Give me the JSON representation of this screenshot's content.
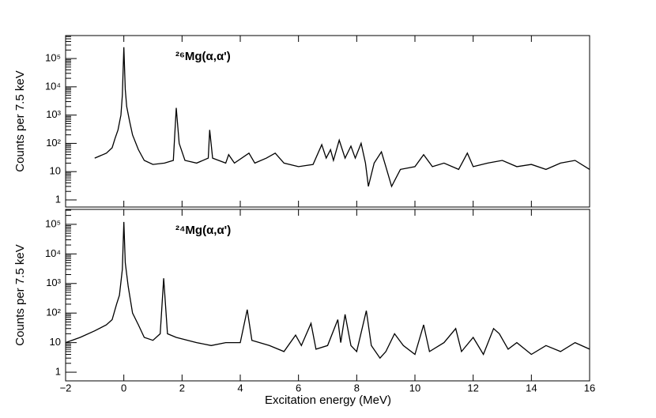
{
  "chart_data": [
    {
      "type": "line",
      "title": "²⁶Mg(α,α')",
      "y_label": "Counts per 7.5 keV",
      "yscale": "log",
      "color": "#000000",
      "xlim": [
        -2,
        16
      ],
      "ylim": [
        0.56,
        650000
      ],
      "xticks": [
        -2,
        0,
        2,
        4,
        6,
        8,
        10,
        12,
        14,
        16
      ],
      "yticks": [
        1,
        10,
        {
          "value": 100,
          "label": "10²"
        },
        {
          "value": 1000,
          "label": "10³"
        },
        {
          "value": 10000,
          "label": "10⁴"
        },
        {
          "value": 100000,
          "label": "10⁵"
        }
      ],
      "x": [
        -1.0,
        -0.6,
        -0.4,
        -0.3,
        -0.2,
        -0.1,
        -0.05,
        0,
        0.05,
        0.1,
        0.2,
        0.3,
        0.5,
        0.7,
        1.0,
        1.4,
        1.7,
        1.8,
        1.9,
        2.1,
        2.5,
        2.9,
        2.95,
        3.05,
        3.5,
        3.6,
        3.8,
        4.3,
        4.5,
        4.9,
        5.2,
        5.5,
        6.0,
        6.5,
        6.8,
        6.95,
        7.1,
        7.2,
        7.4,
        7.6,
        7.8,
        7.95,
        8.15,
        8.3,
        8.4,
        8.6,
        8.85,
        9.0,
        9.2,
        9.5,
        10.0,
        10.3,
        10.6,
        11.0,
        11.5,
        11.8,
        12.0,
        12.5,
        13.0,
        13.5,
        14.0,
        14.5,
        15.0,
        15.5,
        16.0
      ],
      "values": [
        30,
        45,
        70,
        150,
        300,
        1000,
        5000,
        250000,
        8000,
        2000,
        600,
        200,
        60,
        25,
        18,
        20,
        25,
        1800,
        100,
        25,
        20,
        30,
        300,
        30,
        20,
        40,
        20,
        45,
        20,
        30,
        45,
        20,
        15,
        18,
        90,
        30,
        60,
        25,
        130,
        30,
        80,
        30,
        100,
        20,
        3,
        20,
        50,
        15,
        3,
        12,
        15,
        40,
        15,
        20,
        12,
        45,
        15,
        20,
        25,
        15,
        18,
        12,
        20,
        25,
        12
      ]
    },
    {
      "type": "line",
      "title": "²⁴Mg(α,α')",
      "y_label": "Counts per 7.5 keV",
      "x_label": "Excitation energy (MeV)",
      "yscale": "log",
      "color": "#000000",
      "xlim": [
        -2,
        16
      ],
      "ylim": [
        0.51,
        320000
      ],
      "xticks": [
        {
          "value": -2,
          "label": "−2"
        },
        0,
        2,
        4,
        6,
        8,
        10,
        12,
        14,
        16
      ],
      "yticks": [
        1,
        10,
        {
          "value": 100,
          "label": "10²"
        },
        {
          "value": 1000,
          "label": "10³"
        },
        {
          "value": 10000,
          "label": "10⁴"
        },
        {
          "value": 100000,
          "label": "10⁵"
        }
      ],
      "x": [
        -2,
        -1.5,
        -1.0,
        -0.6,
        -0.4,
        -0.25,
        -0.15,
        -0.05,
        0,
        0.05,
        0.15,
        0.3,
        0.5,
        0.7,
        1.0,
        1.25,
        1.37,
        1.5,
        1.8,
        2.5,
        3.0,
        3.5,
        4.0,
        4.24,
        4.4,
        5.0,
        5.5,
        5.9,
        6.1,
        6.43,
        6.6,
        7.0,
        7.35,
        7.45,
        7.6,
        7.8,
        8.0,
        8.33,
        8.5,
        8.8,
        9.0,
        9.3,
        9.6,
        10.0,
        10.3,
        10.5,
        11.0,
        11.4,
        11.6,
        12.0,
        12.35,
        12.7,
        12.9,
        13.2,
        13.5,
        14.0,
        14.5,
        15.0,
        15.5,
        16.0
      ],
      "values": [
        10,
        15,
        25,
        40,
        60,
        200,
        400,
        3000,
        120000,
        5000,
        800,
        100,
        40,
        15,
        12,
        20,
        1500,
        20,
        15,
        10,
        8,
        10,
        10,
        130,
        12,
        8,
        5,
        18,
        8,
        45,
        6,
        8,
        60,
        10,
        90,
        8,
        5,
        120,
        8,
        3,
        5,
        20,
        8,
        4,
        40,
        5,
        10,
        30,
        5,
        15,
        4,
        30,
        20,
        6,
        10,
        4,
        8,
        5,
        10,
        6
      ]
    }
  ]
}
